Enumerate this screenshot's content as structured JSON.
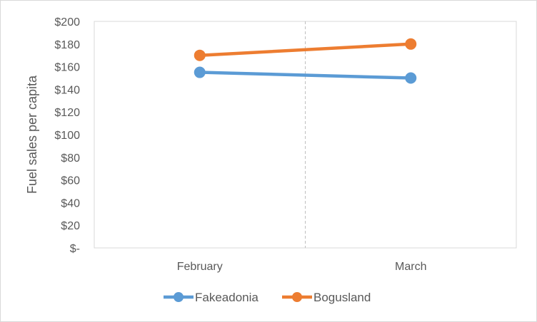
{
  "chart_data": {
    "type": "line",
    "title": "",
    "xlabel": "",
    "ylabel": "Fuel sales per capita",
    "categories": [
      "February",
      "March"
    ],
    "y_ticks": [
      "$-",
      "$20",
      "$40",
      "$60",
      "$80",
      "$100",
      "$120",
      "$140",
      "$160",
      "$180",
      "$200"
    ],
    "ylim": [
      0,
      200
    ],
    "grid": false,
    "legend_position": "bottom",
    "series": [
      {
        "name": "Fakeadonia",
        "values": [
          155,
          150
        ],
        "color": "#5b9bd5"
      },
      {
        "name": "Bogusland",
        "values": [
          170,
          180
        ],
        "color": "#ed7d31"
      }
    ]
  }
}
